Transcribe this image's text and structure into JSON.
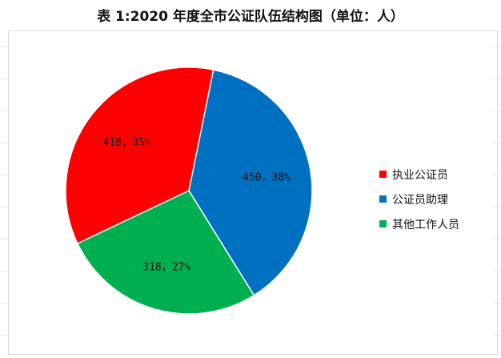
{
  "chart_data": {
    "type": "pie",
    "title": "表 1:2020 年度全市公证队伍结构图（单位：人）",
    "categories": [
      "执业公证员",
      "公证员助理",
      "其他工作人员"
    ],
    "values": [
      418,
      450,
      318
    ],
    "percent_labels": [
      "35%",
      "38%",
      "27%"
    ],
    "data_labels": [
      "418，35%",
      "450，38%",
      "318，27%"
    ],
    "colors": [
      "#ff0000",
      "#0070c0",
      "#00b050"
    ],
    "legend": "right"
  }
}
